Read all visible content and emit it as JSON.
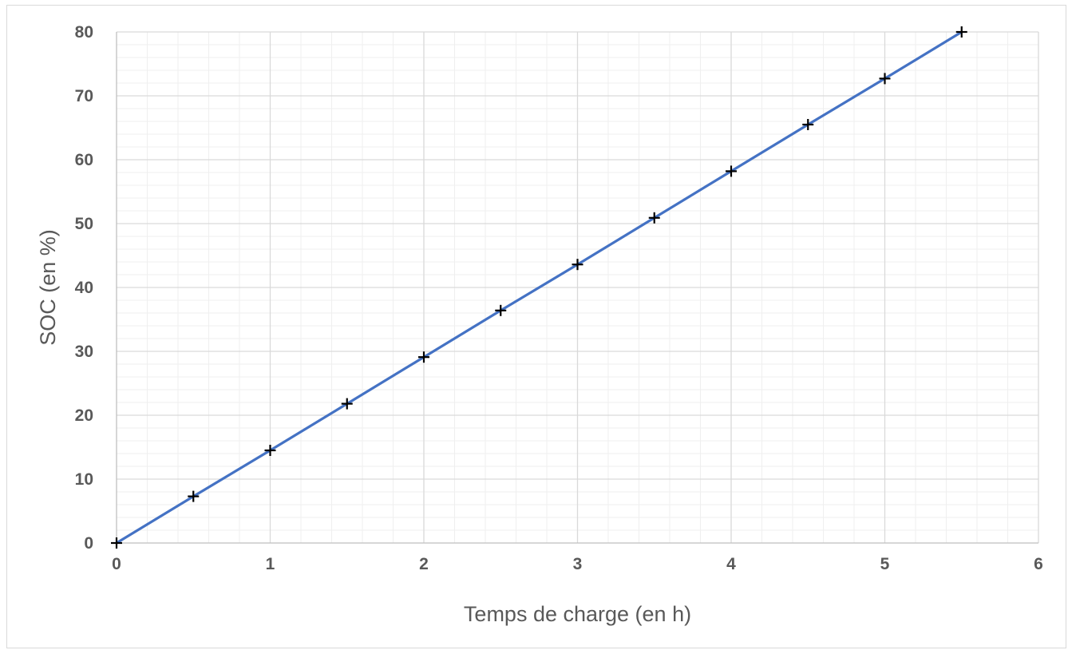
{
  "chart_data": {
    "type": "line",
    "title": "",
    "xlabel": "Temps de charge (en h)",
    "ylabel": "SOC (en %)",
    "xlim": [
      0,
      6
    ],
    "ylim": [
      0,
      80
    ],
    "xticks": [
      0,
      1,
      2,
      3,
      4,
      5,
      6
    ],
    "yticks": [
      0,
      10,
      20,
      30,
      40,
      50,
      60,
      70,
      80
    ],
    "x_minor_step": 0.2,
    "y_minor_step": 2,
    "grid": true,
    "legend": "none",
    "series": [
      {
        "color": "#4472c4",
        "marker": "plus",
        "marker_color": "#000000",
        "x": [
          0,
          0.5,
          1,
          1.5,
          2,
          2.5,
          3,
          3.5,
          4,
          4.5,
          5,
          5.5
        ],
        "y": [
          0,
          7.3,
          14.5,
          21.8,
          29.1,
          36.4,
          43.6,
          50.9,
          58.2,
          65.5,
          72.7,
          80
        ]
      }
    ]
  }
}
